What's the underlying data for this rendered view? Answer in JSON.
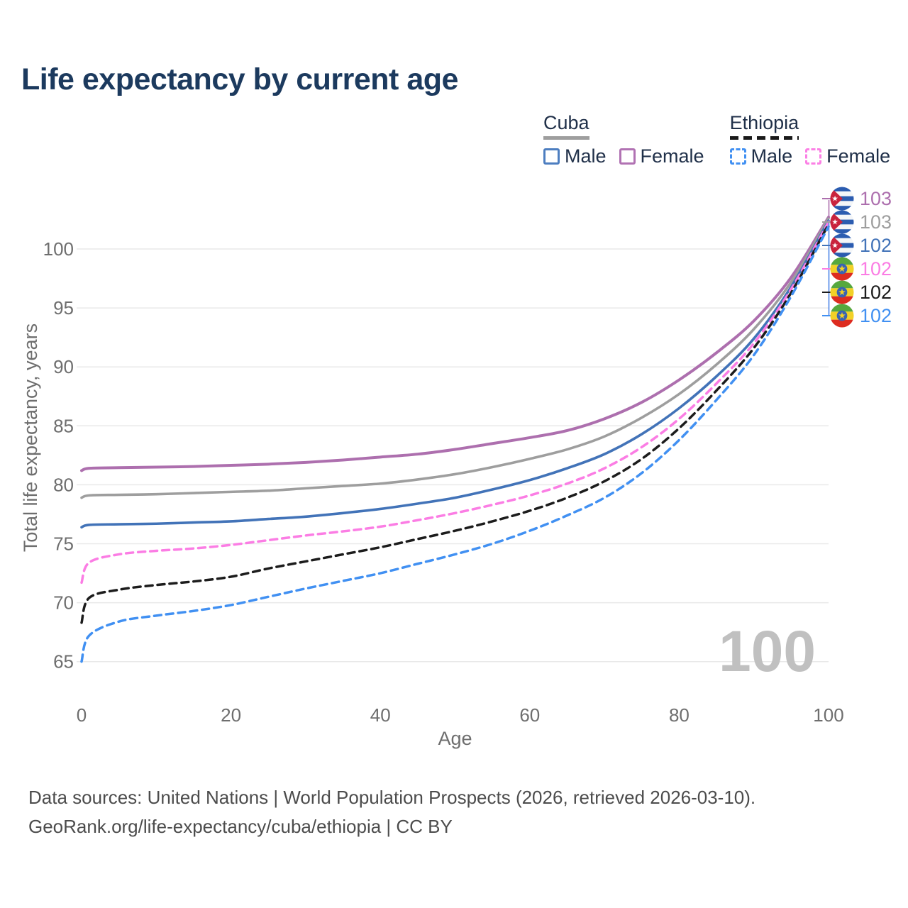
{
  "title": "Life expectancy by current age",
  "legend": {
    "groups": [
      {
        "name": "Cuba",
        "line_style": "solid",
        "line_color": "#9e9e9e",
        "items": [
          {
            "label": "Male",
            "color": "#4d7ec0",
            "style": "solid"
          },
          {
            "label": "Female",
            "color": "#b172b3",
            "style": "solid"
          }
        ]
      },
      {
        "name": "Ethiopia",
        "line_style": "dashed",
        "line_color": "#1a1a1a",
        "items": [
          {
            "label": "Male",
            "color": "#4190f2",
            "style": "dashed"
          },
          {
            "label": "Female",
            "color": "#fb80e5",
            "style": "dashed"
          }
        ]
      }
    ]
  },
  "chart_data": {
    "type": "line",
    "title": "Life expectancy by current age",
    "xlabel": "Age",
    "ylabel": "Total life expectancy, years",
    "xlim": [
      0,
      100
    ],
    "ylim": [
      63,
      104
    ],
    "x_ticks": [
      0,
      20,
      40,
      60,
      80,
      100
    ],
    "y_ticks": [
      65,
      70,
      75,
      80,
      85,
      90,
      95,
      100
    ],
    "grid": "horizontal",
    "watermark": "100",
    "legend_position": "top-right",
    "series": [
      {
        "name": "Cuba Female",
        "country": "Cuba",
        "sex": "Female",
        "color": "#ad6fae",
        "dash": "solid",
        "width": 4,
        "flag": "cuba",
        "end_label": "103",
        "points": [
          [
            0,
            81.2
          ],
          [
            1,
            81.4
          ],
          [
            5,
            81.45
          ],
          [
            10,
            81.5
          ],
          [
            15,
            81.55
          ],
          [
            20,
            81.65
          ],
          [
            25,
            81.75
          ],
          [
            30,
            81.9
          ],
          [
            35,
            82.1
          ],
          [
            40,
            82.35
          ],
          [
            45,
            82.6
          ],
          [
            50,
            83.0
          ],
          [
            55,
            83.5
          ],
          [
            60,
            84.0
          ],
          [
            65,
            84.6
          ],
          [
            70,
            85.6
          ],
          [
            75,
            87.0
          ],
          [
            80,
            88.9
          ],
          [
            85,
            91.2
          ],
          [
            90,
            93.9
          ],
          [
            95,
            97.6
          ],
          [
            100,
            102.7
          ]
        ]
      },
      {
        "name": "Cuba",
        "country": "Cuba",
        "sex": "Both",
        "color": "#9e9e9e",
        "dash": "solid",
        "width": 3.6,
        "flag": "cuba",
        "end_label": "103",
        "points": [
          [
            0,
            78.9
          ],
          [
            1,
            79.1
          ],
          [
            5,
            79.15
          ],
          [
            10,
            79.2
          ],
          [
            15,
            79.3
          ],
          [
            20,
            79.4
          ],
          [
            25,
            79.5
          ],
          [
            30,
            79.7
          ],
          [
            35,
            79.9
          ],
          [
            40,
            80.1
          ],
          [
            45,
            80.45
          ],
          [
            50,
            80.9
          ],
          [
            55,
            81.5
          ],
          [
            60,
            82.2
          ],
          [
            65,
            83.0
          ],
          [
            70,
            84.1
          ],
          [
            75,
            85.7
          ],
          [
            80,
            87.7
          ],
          [
            85,
            90.2
          ],
          [
            90,
            93.2
          ],
          [
            95,
            97.2
          ],
          [
            100,
            102.6
          ]
        ]
      },
      {
        "name": "Cuba Male",
        "country": "Cuba",
        "sex": "Male",
        "color": "#4273b8",
        "dash": "solid",
        "width": 3.6,
        "flag": "cuba",
        "end_label": "102",
        "points": [
          [
            0,
            76.4
          ],
          [
            1,
            76.6
          ],
          [
            5,
            76.65
          ],
          [
            10,
            76.7
          ],
          [
            15,
            76.8
          ],
          [
            20,
            76.9
          ],
          [
            25,
            77.1
          ],
          [
            30,
            77.3
          ],
          [
            35,
            77.6
          ],
          [
            40,
            77.95
          ],
          [
            45,
            78.4
          ],
          [
            50,
            78.9
          ],
          [
            55,
            79.6
          ],
          [
            60,
            80.4
          ],
          [
            65,
            81.4
          ],
          [
            70,
            82.6
          ],
          [
            75,
            84.3
          ],
          [
            80,
            86.5
          ],
          [
            85,
            89.2
          ],
          [
            90,
            92.4
          ],
          [
            95,
            96.8
          ],
          [
            100,
            102.4
          ]
        ]
      },
      {
        "name": "Ethiopia Female",
        "country": "Ethiopia",
        "sex": "Female",
        "color": "#fb7de4",
        "dash": "dashed",
        "width": 3.5,
        "flag": "ethiopia",
        "end_label": "102",
        "points": [
          [
            0,
            71.7
          ],
          [
            1,
            73.4
          ],
          [
            5,
            74.1
          ],
          [
            10,
            74.4
          ],
          [
            15,
            74.6
          ],
          [
            20,
            74.9
          ],
          [
            25,
            75.3
          ],
          [
            30,
            75.7
          ],
          [
            35,
            76.05
          ],
          [
            40,
            76.45
          ],
          [
            45,
            77.0
          ],
          [
            50,
            77.6
          ],
          [
            55,
            78.3
          ],
          [
            60,
            79.1
          ],
          [
            65,
            80.1
          ],
          [
            70,
            81.4
          ],
          [
            75,
            83.2
          ],
          [
            80,
            85.6
          ],
          [
            85,
            88.6
          ],
          [
            90,
            92.0
          ],
          [
            95,
            96.6
          ],
          [
            100,
            102.3
          ]
        ]
      },
      {
        "name": "Ethiopia",
        "country": "Ethiopia",
        "sex": "Both",
        "color": "#1c1c1c",
        "dash": "dashed",
        "width": 3.5,
        "flag": "ethiopia",
        "end_label": "102",
        "points": [
          [
            0,
            68.3
          ],
          [
            1,
            70.4
          ],
          [
            5,
            71.1
          ],
          [
            10,
            71.5
          ],
          [
            15,
            71.8
          ],
          [
            20,
            72.2
          ],
          [
            25,
            72.9
          ],
          [
            30,
            73.5
          ],
          [
            35,
            74.1
          ],
          [
            40,
            74.7
          ],
          [
            45,
            75.4
          ],
          [
            50,
            76.1
          ],
          [
            55,
            76.9
          ],
          [
            60,
            77.8
          ],
          [
            65,
            78.9
          ],
          [
            70,
            80.3
          ],
          [
            75,
            82.2
          ],
          [
            80,
            84.8
          ],
          [
            85,
            88.0
          ],
          [
            90,
            91.6
          ],
          [
            95,
            96.3
          ],
          [
            100,
            102.1
          ]
        ]
      },
      {
        "name": "Ethiopia Male",
        "country": "Ethiopia",
        "sex": "Male",
        "color": "#4190f2",
        "dash": "dashed",
        "width": 3.5,
        "flag": "ethiopia",
        "end_label": "102",
        "points": [
          [
            0,
            65.0
          ],
          [
            1,
            67.2
          ],
          [
            5,
            68.4
          ],
          [
            10,
            68.9
          ],
          [
            15,
            69.3
          ],
          [
            20,
            69.8
          ],
          [
            25,
            70.5
          ],
          [
            30,
            71.2
          ],
          [
            35,
            71.85
          ],
          [
            40,
            72.5
          ],
          [
            45,
            73.3
          ],
          [
            50,
            74.1
          ],
          [
            55,
            75.0
          ],
          [
            60,
            76.1
          ],
          [
            65,
            77.4
          ],
          [
            70,
            78.9
          ],
          [
            75,
            81.0
          ],
          [
            80,
            83.8
          ],
          [
            85,
            87.2
          ],
          [
            90,
            91.0
          ],
          [
            95,
            96.0
          ],
          [
            100,
            101.9
          ]
        ]
      }
    ]
  },
  "footer": {
    "line1": "Data sources: United Nations | World Population Prospects (2026, retrieved 2026-03-10).",
    "line2": "GeoRank.org/life-expectancy/cuba/ethiopia | CC BY"
  },
  "colors": {
    "title": "#1c3a5e",
    "grid": "#e9e9e9",
    "tick_label": "#6e6e6e",
    "footer_text": "#4c4c4c",
    "watermark": "#c0c0c0",
    "leader_blue": "#4d86e8"
  }
}
